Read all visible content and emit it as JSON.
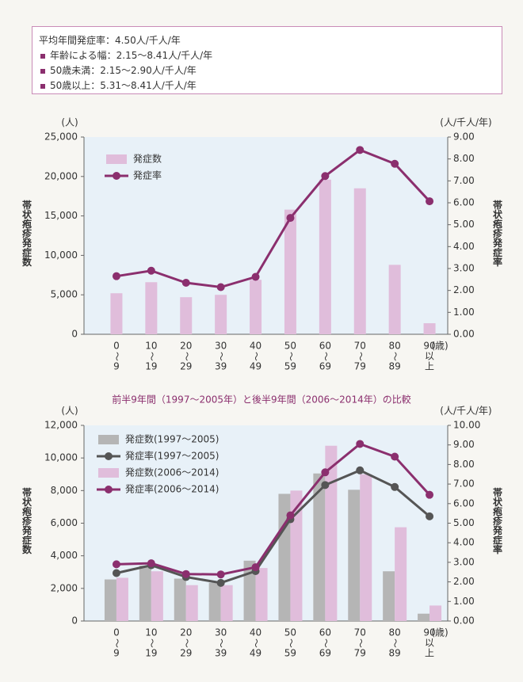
{
  "info_box": {
    "title": "平均年間発症率：4.50人/千人/年",
    "items": [
      "年齢による幅：2.15〜8.41人/千人/年",
      "50歳未満：2.15〜2.90人/千人/年",
      "50歳以上：5.31〜8.41人/千人/年"
    ]
  },
  "chart_data": [
    {
      "type": "combo",
      "ylabel": "帯状疱疹発症数",
      "y2label": "帯状疱疹発症率",
      "yunit": "(人)",
      "y2unit": "(人/千人/年)",
      "xunit": "(歳)",
      "categories": [
        [
          "0",
          "〜",
          "9"
        ],
        [
          "10",
          "〜",
          "19"
        ],
        [
          "20",
          "〜",
          "29"
        ],
        [
          "30",
          "〜",
          "39"
        ],
        [
          "40",
          "〜",
          "49"
        ],
        [
          "50",
          "〜",
          "59"
        ],
        [
          "60",
          "〜",
          "69"
        ],
        [
          "70",
          "〜",
          "79"
        ],
        [
          "80",
          "〜",
          "89"
        ],
        [
          "90",
          "以",
          "上"
        ]
      ],
      "ylim": [
        0,
        25000
      ],
      "yticks": [
        {
          "value": 0,
          "label": "0"
        },
        {
          "value": 5000,
          "label": "5,000"
        },
        {
          "value": 10000,
          "label": "10,000"
        },
        {
          "value": 15000,
          "label": "15,000"
        },
        {
          "value": 20000,
          "label": "20,000"
        },
        {
          "value": 25000,
          "label": "25,000"
        }
      ],
      "y2lim": [
        0,
        9
      ],
      "y2ticks": [
        {
          "value": 0,
          "label": "0.00"
        },
        {
          "value": 1,
          "label": "1.00"
        },
        {
          "value": 2,
          "label": "2.00"
        },
        {
          "value": 3,
          "label": "3.00"
        },
        {
          "value": 4,
          "label": "4.00"
        },
        {
          "value": 5,
          "label": "5.00"
        },
        {
          "value": 6,
          "label": "6.00"
        },
        {
          "value": 7,
          "label": "7.00"
        },
        {
          "value": 8,
          "label": "8.00"
        },
        {
          "value": 9,
          "label": "9.00"
        }
      ],
      "legend": "upper-left",
      "series": [
        {
          "name": "発症数",
          "kind": "bar",
          "color": "#e0bddb",
          "values": [
            5200,
            6600,
            4700,
            5000,
            6900,
            15800,
            19600,
            18500,
            8800,
            1400
          ]
        },
        {
          "name": "発症率",
          "kind": "line",
          "axis": "y2",
          "color": "#8b2f6e",
          "values": [
            2.65,
            2.9,
            2.35,
            2.15,
            2.62,
            5.31,
            7.22,
            8.41,
            7.78,
            6.07
          ]
        }
      ]
    },
    {
      "type": "combo",
      "title": "前半9年間（1997〜2005年）と後半9年間（2006〜2014年）の比較",
      "ylabel": "帯状疱疹発症数",
      "y2label": "帯状疱疹発症率",
      "yunit": "(人)",
      "y2unit": "(人/千人/年)",
      "xunit": "(歳)",
      "categories": [
        [
          "0",
          "〜",
          "9"
        ],
        [
          "10",
          "〜",
          "19"
        ],
        [
          "20",
          "〜",
          "29"
        ],
        [
          "30",
          "〜",
          "39"
        ],
        [
          "40",
          "〜",
          "49"
        ],
        [
          "50",
          "〜",
          "59"
        ],
        [
          "60",
          "〜",
          "69"
        ],
        [
          "70",
          "〜",
          "79"
        ],
        [
          "80",
          "〜",
          "89"
        ],
        [
          "90",
          "以",
          "上"
        ]
      ],
      "ylim": [
        0,
        12000
      ],
      "yticks": [
        {
          "value": 0,
          "label": "0"
        },
        {
          "value": 2000,
          "label": "2,000"
        },
        {
          "value": 4000,
          "label": "4,000"
        },
        {
          "value": 6000,
          "label": "6,000"
        },
        {
          "value": 8000,
          "label": "8,000"
        },
        {
          "value": 10000,
          "label": "10,000"
        },
        {
          "value": 12000,
          "label": "12,000"
        }
      ],
      "y2lim": [
        0,
        10
      ],
      "y2ticks": [
        {
          "value": 0,
          "label": "0.00"
        },
        {
          "value": 1,
          "label": "1.00"
        },
        {
          "value": 2,
          "label": "2.00"
        },
        {
          "value": 3,
          "label": "3.00"
        },
        {
          "value": 4,
          "label": "4.00"
        },
        {
          "value": 5,
          "label": "5.00"
        },
        {
          "value": 6,
          "label": "6.00"
        },
        {
          "value": 7,
          "label": "7.00"
        },
        {
          "value": 8,
          "label": "8.00"
        },
        {
          "value": 9,
          "label": "9.00"
        },
        {
          "value": 10,
          "label": "10.00"
        }
      ],
      "legend": "upper-left",
      "series": [
        {
          "name": "発症数(1997〜2005)",
          "kind": "bar",
          "color": "#b5b5b5",
          "values": [
            2550,
            3400,
            2600,
            2350,
            3700,
            7800,
            9050,
            8050,
            3050,
            450
          ]
        },
        {
          "name": "発症率(1997〜2005)",
          "kind": "line",
          "axis": "y2",
          "color": "#555555",
          "values": [
            2.45,
            2.85,
            2.25,
            1.95,
            2.55,
            5.2,
            6.95,
            7.7,
            6.85,
            5.35
          ]
        },
        {
          "name": "発症数(2006〜2014)",
          "kind": "bar",
          "color": "#e0bddb",
          "values": [
            2650,
            3050,
            2200,
            2200,
            3250,
            8000,
            10750,
            9000,
            5750,
            950
          ]
        },
        {
          "name": "発症率(2006〜2014)",
          "kind": "line",
          "axis": "y2",
          "color": "#8b2f6e",
          "values": [
            2.9,
            2.95,
            2.4,
            2.38,
            2.75,
            5.4,
            7.6,
            9.05,
            8.4,
            6.45
          ]
        }
      ]
    }
  ]
}
